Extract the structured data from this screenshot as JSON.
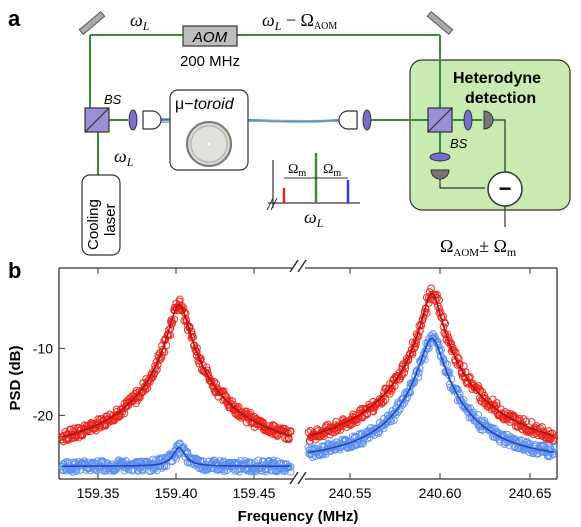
{
  "panel_a": {
    "label": "a",
    "beam_label_left": "ω",
    "beam_label_left_sub": "L",
    "beam_label_right_main": "ω",
    "beam_label_right_sub": "L",
    "beam_label_right_minus": " − Ω",
    "beam_label_right_minus_sub": "AOM",
    "aom_label": "AOM",
    "aom_freq": "200 MHz",
    "bs_left": "BS",
    "bs_right": "BS",
    "toroid_label_mu": "μ−",
    "toroid_label_word": "toroid",
    "cooling_laser_line1": "Cooling",
    "cooling_laser_line2": "laser",
    "omega_L_below_bs": "ω",
    "omega_L_below_bs_sub": "L",
    "heterodyne_line1": "Heterodyne",
    "heterodyne_line2": "detection",
    "mixer_symbol": "−",
    "output_main": "Ω",
    "output_sub": "AOM",
    "output_pm": "± Ω",
    "output_pm_sub": "m",
    "sideband_omega_left": "Ω",
    "sideband_omega_left_sub": "m",
    "sideband_omega_right": "Ω",
    "sideband_omega_right_sub": "m",
    "sideband_carrier": "ω",
    "sideband_carrier_sub": "L",
    "colors": {
      "beam": "#3a8a3a",
      "fiber": "#3a78c4",
      "heterodyne_box": "#c9eab0",
      "aom_box": "#bdbdbd",
      "bs": "#9b8fd6",
      "lens": "#7a6fd0",
      "red": "#e8231a",
      "blue": "#2d3fd6",
      "green": "#3a8a3a"
    }
  },
  "panel_b": {
    "label": "b",
    "chart_data": [
      {
        "type": "scatter",
        "xlabel": "Frequency (MHz)",
        "ylabel": "PSD (dB)",
        "x_ticks": [
          "159.35",
          "159.40",
          "159.45"
        ],
        "x_range": [
          159.325,
          159.475
        ],
        "y_ticks": [
          "-10",
          "-20"
        ],
        "y_range": [
          -29.5,
          2
        ],
        "series": [
          {
            "color": "#e8231a",
            "center": 159.402,
            "peak": -3.5,
            "floor": -26.2,
            "width": 0.0055
          },
          {
            "color": "#5b8ef0",
            "center": 159.402,
            "peak": -24.8,
            "floor": -27.6,
            "width": 0.004
          }
        ]
      },
      {
        "type": "scatter",
        "xlabel": "Frequency (MHz)",
        "ylabel": "PSD (dB)",
        "x_ticks": [
          "240.55",
          "240.60",
          "240.65"
        ],
        "x_range": [
          240.525,
          240.665
        ],
        "y_ticks": [
          "-10",
          "-20"
        ],
        "y_range": [
          -29.5,
          2
        ],
        "series": [
          {
            "color": "#e8231a",
            "center": 240.5955,
            "peak": -1.8,
            "floor": -26.8,
            "width": 0.0045
          },
          {
            "color": "#5b8ef0",
            "center": 240.5955,
            "peak": -8.5,
            "floor": -27.2,
            "width": 0.0055
          }
        ]
      }
    ]
  }
}
